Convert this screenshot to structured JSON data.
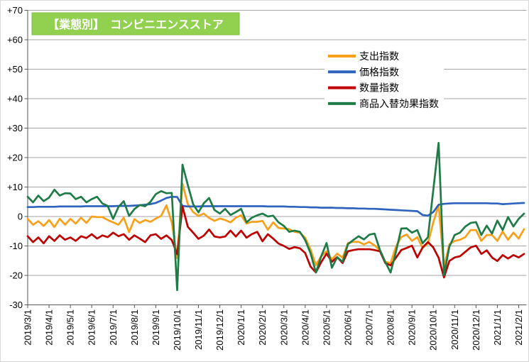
{
  "window": {
    "bg_color": "#FFFFFF",
    "border_color": "#D9D9D9"
  },
  "title_box": {
    "text": "【業態別】　コンビニエンスストア",
    "bg_color": "#92D050",
    "text_color": "#FFFFFF"
  },
  "chart_data": {
    "type": "line",
    "title": "【業態別】　コンビニエンスストア",
    "x_note": "weekly data points, 4 per month, from 2019/3/1 to 2021/2/1",
    "x_tick_labels": [
      "2019/3/1",
      "2019/4/1",
      "2019/5/1",
      "2019/6/1",
      "2019/7/1",
      "2019/8/1",
      "2019/9/1",
      "2019/10/1",
      "2019/11/1",
      "2019/12/1",
      "2020/1/1",
      "2020/2/1",
      "2020/3/1",
      "2020/4/1",
      "2020/5/1",
      "2020/6/1",
      "2020/7/1",
      "2020/8/1",
      "2020/9/1",
      "2020/10/1",
      "2020/11/1",
      "2020/12/1",
      "2021/1/1",
      "2021/2/1"
    ],
    "ylim": [
      -30,
      70
    ],
    "y_tick_labels": [
      "+70",
      "+60",
      "+50",
      "+40",
      "+30",
      "+20",
      "+10",
      "0",
      "-10",
      "-20",
      "-30"
    ],
    "grid": true,
    "legend_position": "inside-top-right",
    "axis_color": "#595959",
    "grid_color": "#A6A6A6",
    "series": [
      {
        "name": "支出指数",
        "color": "#F9A01B",
        "values": [
          -0.8,
          -2.8,
          -1.6,
          -3.2,
          -1.2,
          -3.6,
          -0.8,
          -2.8,
          -0.8,
          -2.4,
          -0.4,
          -2.2,
          0.0,
          -0.2,
          -0.2,
          -1.2,
          -2.0,
          -2.8,
          -0.4,
          -5.3,
          -0.9,
          -2.2,
          -1.2,
          -1.8,
          -0.7,
          0.2,
          3.8,
          -2.0,
          -14.1,
          11.1,
          4.2,
          1.5,
          0.2,
          1.0,
          -0.5,
          -1.5,
          -0.7,
          -1.2,
          -2.0,
          -0.4,
          0.4,
          -2.4,
          -1.8,
          -1.8,
          -1.5,
          -4.5,
          -2.0,
          -3.9,
          -4.1,
          -4.3,
          -5.2,
          -5.5,
          -7.2,
          -11.2,
          -16.5,
          -13.5,
          -11.8,
          -14.6,
          -12.6,
          -14.0,
          -9.0,
          -8.6,
          -8.6,
          -9.5,
          -8.6,
          -9.8,
          -11.4,
          -15.4,
          -15.8,
          -10.2,
          -7.0,
          -6.1,
          -8.3,
          -7.0,
          -10.7,
          -9.1,
          -2.0,
          3.8,
          -17.1,
          -9.5,
          -8.3,
          -7.9,
          -7.0,
          -4.6,
          -4.6,
          -8.3,
          -6.3,
          -6.3,
          -8.3,
          -5.1,
          -7.9,
          -5.5,
          -7.5,
          -4.3
        ]
      },
      {
        "name": "価格指数",
        "color": "#2E64BE",
        "values": [
          3.2,
          3.2,
          3.3,
          3.3,
          3.3,
          3.3,
          3.4,
          3.4,
          3.4,
          3.4,
          3.4,
          3.5,
          3.5,
          3.5,
          3.5,
          3.5,
          3.5,
          3.6,
          3.6,
          3.6,
          3.7,
          3.8,
          4.0,
          4.2,
          4.6,
          5.4,
          6.3,
          6.7,
          6.6,
          3.6,
          3.4,
          3.4,
          3.4,
          3.5,
          3.5,
          3.5,
          3.5,
          3.5,
          3.5,
          3.5,
          3.5,
          3.5,
          3.5,
          3.5,
          3.5,
          3.4,
          3.4,
          3.4,
          3.4,
          3.3,
          3.3,
          3.2,
          3.2,
          3.1,
          3.1,
          3.0,
          3.0,
          3.0,
          2.9,
          2.9,
          2.8,
          2.8,
          2.7,
          2.7,
          2.6,
          2.6,
          2.5,
          2.4,
          2.3,
          2.2,
          2.1,
          2.0,
          1.9,
          1.8,
          0.5,
          0.3,
          1.5,
          4.0,
          4.3,
          4.4,
          4.5,
          4.5,
          4.5,
          4.5,
          4.5,
          4.5,
          4.5,
          4.4,
          4.4,
          4.2,
          4.3,
          4.4,
          4.5,
          4.6
        ]
      },
      {
        "name": "数量指数",
        "color": "#C00000",
        "values": [
          -6.7,
          -8.7,
          -7.1,
          -9.1,
          -6.7,
          -8.3,
          -6.4,
          -7.9,
          -7.1,
          -8.3,
          -6.7,
          -7.3,
          -6.0,
          -7.5,
          -6.4,
          -7.0,
          -5.5,
          -6.7,
          -6.0,
          -7.9,
          -6.4,
          -7.5,
          -8.7,
          -6.4,
          -6.0,
          -7.6,
          -6.4,
          -8.0,
          -12.8,
          3.4,
          -3.5,
          -5.5,
          -7.6,
          -6.5,
          -4.4,
          -6.8,
          -7.1,
          -6.8,
          -4.8,
          -6.8,
          -4.8,
          -7.2,
          -6.0,
          -5.2,
          -8.4,
          -6.0,
          -7.5,
          -9.2,
          -10.0,
          -11.0,
          -10.4,
          -10.8,
          -12.4,
          -17.0,
          -19.0,
          -15.5,
          -12.6,
          -15.4,
          -13.8,
          -15.8,
          -11.8,
          -11.4,
          -11.1,
          -11.1,
          -11.1,
          -11.4,
          -11.8,
          -15.8,
          -16.6,
          -14.0,
          -11.4,
          -10.7,
          -9.9,
          -13.9,
          -10.5,
          -8.7,
          -10.5,
          -14.0,
          -20.7,
          -15.1,
          -13.9,
          -13.5,
          -12.0,
          -10.5,
          -9.9,
          -12.7,
          -11.5,
          -13.9,
          -15.1,
          -13.1,
          -14.3,
          -13.1,
          -13.9,
          -12.7
        ]
      },
      {
        "name": "商品入替効果指数",
        "color": "#1E7B46",
        "values": [
          6.7,
          4.8,
          7.1,
          5.2,
          6.4,
          9.1,
          7.1,
          7.9,
          7.8,
          5.9,
          6.7,
          4.8,
          5.9,
          6.7,
          4.4,
          3.6,
          -0.8,
          3.2,
          5.2,
          0.2,
          2.5,
          3.9,
          3.5,
          5.0,
          7.6,
          8.6,
          7.9,
          8.0,
          -25.0,
          17.6,
          10.7,
          4.2,
          1.4,
          4.5,
          6.3,
          2.2,
          1.0,
          2.6,
          0.5,
          1.5,
          2.6,
          -2.0,
          -0.4,
          0.4,
          1.0,
          0.0,
          0.3,
          -2.0,
          -3.2,
          -5.2,
          -4.8,
          -5.2,
          -8.0,
          -12.5,
          -19.0,
          -13.5,
          -9.0,
          -17.4,
          -13.8,
          -15.4,
          -9.4,
          -8.0,
          -6.7,
          -7.8,
          -6.2,
          -5.8,
          -11.4,
          -15.5,
          -19.0,
          -12.0,
          -4.1,
          -4.0,
          -5.5,
          -4.6,
          -9.1,
          -7.0,
          9.0,
          25.0,
          -19.9,
          -10.3,
          -6.3,
          -5.5,
          -3.4,
          -2.2,
          -1.9,
          -6.3,
          -3.1,
          -5.8,
          -1.4,
          -4.6,
          -0.2,
          -3.4,
          -0.8,
          1.0
        ]
      }
    ]
  }
}
